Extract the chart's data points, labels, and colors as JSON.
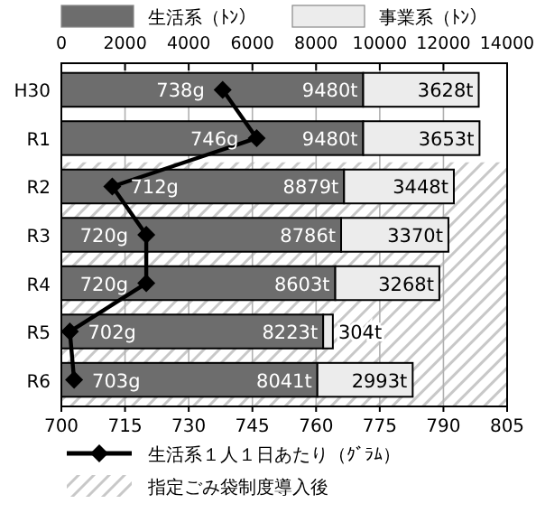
{
  "chart_data": {
    "type": "bar",
    "orientation": "horizontal",
    "stacked": true,
    "categories": [
      "H30",
      "R1",
      "R2",
      "R3",
      "R4",
      "R5",
      "R6"
    ],
    "series": [
      {
        "name": "生活系（ﾄﾝ）",
        "color": "#6d6d6d",
        "values": [
          9480,
          9480,
          8879,
          8786,
          8603,
          8223,
          8041
        ],
        "value_labels": [
          "9480t",
          "9480t",
          "8879t",
          "8786t",
          "8603t",
          "8223t",
          "8041t"
        ]
      },
      {
        "name": "事業系（ﾄﾝ）",
        "color": "#ececec",
        "values": [
          3628,
          3653,
          3448,
          3370,
          3268,
          304,
          2993
        ],
        "value_labels": [
          "3628t",
          "3653t",
          "3448t",
          "3370t",
          "3268t",
          "304t",
          "2993t"
        ]
      },
      {
        "name": "生活系１人１日あたり（ｸﾞﾗﾑ）",
        "type": "line",
        "axis": "x2",
        "color": "#000000",
        "marker": "diamond",
        "values": [
          738,
          746,
          712,
          720,
          720,
          702,
          703
        ],
        "value_labels": [
          "738g",
          "746g",
          "712g",
          "720g",
          "720g",
          "702g",
          "703g"
        ]
      }
    ],
    "xlim": [
      0,
      14000
    ],
    "xticks": [
      0,
      2000,
      4000,
      6000,
      8000,
      10000,
      12000,
      14000
    ],
    "x2lim": [
      700,
      805
    ],
    "x2ticks": [
      700,
      715,
      730,
      745,
      760,
      775,
      790,
      805
    ],
    "bands": [
      {
        "axis": "y",
        "from": "R2",
        "to": "R6",
        "label": "指定ごみ袋制度導入後",
        "color": "#c8c8c8"
      }
    ],
    "grid": "x",
    "legend": "bottom left"
  }
}
